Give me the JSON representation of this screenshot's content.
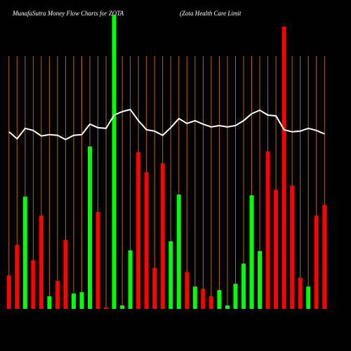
{
  "chart_data": {
    "type": "bar",
    "title": "MunafaSutra  Money Flow  Charts for ZOTA",
    "subtitle": "(Zota  Health Care   Limit",
    "values": [
      48,
      92,
      161,
      70,
      134,
      18,
      40,
      99,
      22,
      24,
      233,
      139,
      2,
      422,
      5,
      84,
      225,
      196,
      59,
      209,
      97,
      164,
      53,
      32,
      29,
      18,
      27,
      5,
      36,
      65,
      163,
      83,
      226,
      171,
      405,
      177,
      45,
      32,
      134,
      149
    ],
    "colors": [
      "#ff0000",
      "#ff0000",
      "#00ff00",
      "#ff0000",
      "#ff0000",
      "#00ff00",
      "#ff0000",
      "#ff0000",
      "#00ff00",
      "#00ff00",
      "#00ff00",
      "#ff0000",
      "#ff0000",
      "#00ff00",
      "#00ff00",
      "#00ff00",
      "#ff0000",
      "#ff0000",
      "#ff0000",
      "#ff0000",
      "#00ff00",
      "#00ff00",
      "#ff0000",
      "#00ff00",
      "#ff0000",
      "#ff0000",
      "#00ff00",
      "#00ff00",
      "#00ff00",
      "#00ff00",
      "#00ff00",
      "#00ff00",
      "#ff0000",
      "#ff0000",
      "#ff0000",
      "#ff0000",
      "#ff0000",
      "#00ff00",
      "#ff0000",
      "#ff0000"
    ],
    "line": {
      "color": "#ffffff",
      "values": [
        254,
        244,
        259,
        256,
        248,
        250,
        249,
        243,
        249,
        250,
        265,
        260,
        259,
        278,
        283,
        286,
        270,
        257,
        255,
        249,
        260,
        273,
        266,
        270,
        265,
        261,
        263,
        261,
        263,
        270,
        280,
        285,
        278,
        277,
        257,
        254,
        255,
        259,
        256,
        251
      ]
    },
    "ylim": [
      0,
      425
    ],
    "grid_color": "#b8660b"
  }
}
